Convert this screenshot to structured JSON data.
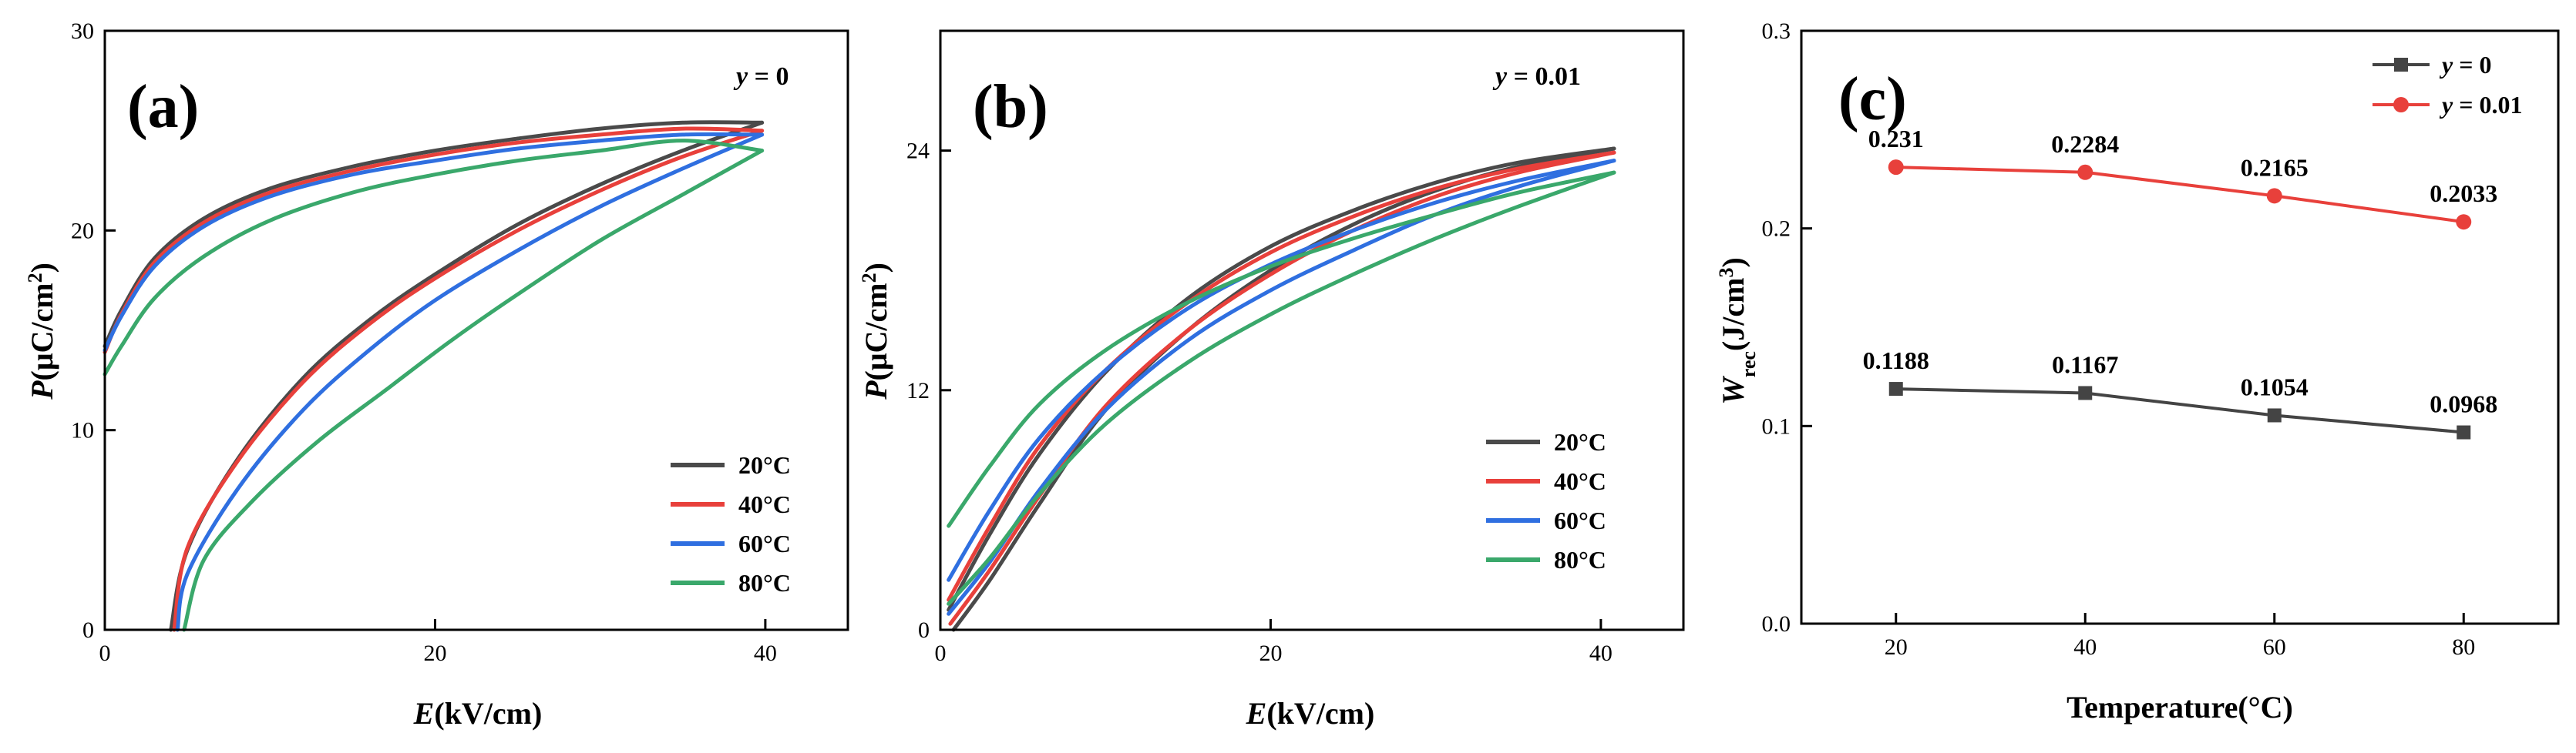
{
  "colors": {
    "20": "#4a4a4a",
    "40": "#e8403b",
    "60": "#2f6fe0",
    "80": "#3aa86b",
    "y0": "#444444",
    "y001": "#e8403b"
  },
  "chart_data": [
    {
      "type": "line",
      "panel": "(a)",
      "annotation_var": "y",
      "annotation_val": " = 0",
      "xlabel_var": "E",
      "xlabel_unit": "(kV/cm)",
      "ylabel_var": "P",
      "ylabel_unit": "(μC/cm",
      "ylabel_sup": "2",
      "ylabel_close": ")",
      "xlim": [
        0,
        45
      ],
      "ylim": [
        0,
        30
      ],
      "xticks": [
        0,
        20,
        40
      ],
      "xtick_labels": [
        "0",
        "20",
        "40"
      ],
      "yticks": [
        0,
        10,
        20,
        30
      ],
      "ytick_labels": [
        "0",
        "10",
        "20",
        "30"
      ],
      "legend": "bottom-right",
      "series": [
        {
          "name": "20°C",
          "color": "#4a4a4a",
          "upper": [
            [
              0,
              14.2
            ],
            [
              1,
              16.0
            ],
            [
              3,
              18.6
            ],
            [
              6,
              20.6
            ],
            [
              10,
              22.1
            ],
            [
              15,
              23.2
            ],
            [
              20,
              24.0
            ],
            [
              25,
              24.6
            ],
            [
              30,
              25.1
            ],
            [
              35,
              25.4
            ],
            [
              39.8,
              25.4
            ]
          ],
          "lower": [
            [
              4.0,
              0
            ],
            [
              5,
              4.0
            ],
            [
              8,
              8.5
            ],
            [
              12,
              12.6
            ],
            [
              16,
              15.5
            ],
            [
              20,
              17.8
            ],
            [
              25,
              20.3
            ],
            [
              30,
              22.3
            ],
            [
              35,
              24.0
            ],
            [
              39.8,
              25.4
            ]
          ]
        },
        {
          "name": "40°C",
          "color": "#e8403b",
          "upper": [
            [
              0,
              13.9
            ],
            [
              1,
              15.8
            ],
            [
              3,
              18.4
            ],
            [
              6,
              20.4
            ],
            [
              10,
              21.9
            ],
            [
              15,
              23.0
            ],
            [
              20,
              23.8
            ],
            [
              25,
              24.4
            ],
            [
              30,
              24.8
            ],
            [
              35,
              25.1
            ],
            [
              39.8,
              25.0
            ]
          ],
          "lower": [
            [
              4.2,
              0
            ],
            [
              5,
              4.1
            ],
            [
              8,
              8.4
            ],
            [
              12,
              12.4
            ],
            [
              16,
              15.3
            ],
            [
              20,
              17.6
            ],
            [
              25,
              20.0
            ],
            [
              30,
              22.0
            ],
            [
              35,
              23.7
            ],
            [
              39.8,
              25.0
            ]
          ]
        },
        {
          "name": "60°C",
          "color": "#2f6fe0",
          "upper": [
            [
              0,
              14.0
            ],
            [
              1,
              15.7
            ],
            [
              3,
              18.2
            ],
            [
              6,
              20.2
            ],
            [
              10,
              21.7
            ],
            [
              15,
              22.8
            ],
            [
              20,
              23.5
            ],
            [
              25,
              24.1
            ],
            [
              30,
              24.5
            ],
            [
              35,
              24.8
            ],
            [
              39.8,
              24.8
            ]
          ],
          "lower": [
            [
              4.4,
              0
            ],
            [
              5,
              2.8
            ],
            [
              8,
              7.0
            ],
            [
              12,
              11.0
            ],
            [
              16,
              14.0
            ],
            [
              20,
              16.5
            ],
            [
              25,
              19.0
            ],
            [
              30,
              21.2
            ],
            [
              35,
              23.1
            ],
            [
              39.8,
              24.8
            ]
          ]
        },
        {
          "name": "80°C",
          "color": "#3aa86b",
          "upper": [
            [
              0,
              12.8
            ],
            [
              1,
              14.2
            ],
            [
              3,
              16.6
            ],
            [
              6,
              18.7
            ],
            [
              10,
              20.5
            ],
            [
              15,
              21.9
            ],
            [
              20,
              22.8
            ],
            [
              25,
              23.5
            ],
            [
              30,
              24.0
            ],
            [
              35,
              24.5
            ],
            [
              39.8,
              24.0
            ]
          ],
          "lower": [
            [
              4.8,
              0
            ],
            [
              6,
              3.5
            ],
            [
              9,
              6.5
            ],
            [
              13,
              9.5
            ],
            [
              17,
              12.0
            ],
            [
              21,
              14.5
            ],
            [
              25,
              16.8
            ],
            [
              30,
              19.5
            ],
            [
              35,
              21.8
            ],
            [
              39.8,
              24.0
            ]
          ]
        }
      ]
    },
    {
      "type": "line",
      "panel": "(b)",
      "annotation_var": "y",
      "annotation_val": " = 0.01",
      "xlabel_var": "E",
      "xlabel_unit": "(kV/cm)",
      "ylabel_var": "P",
      "ylabel_unit": "(μC/cm",
      "ylabel_sup": "2",
      "ylabel_close": ")",
      "xlim": [
        0,
        45
      ],
      "ylim": [
        0,
        30
      ],
      "xticks": [
        0,
        20,
        40
      ],
      "xtick_labels": [
        "0",
        "20",
        "40"
      ],
      "yticks": [
        0,
        12,
        24
      ],
      "ytick_labels": [
        "0",
        "12",
        "24"
      ],
      "legend": "bottom-right",
      "series": [
        {
          "name": "20°C",
          "color": "#4a4a4a",
          "upper": [
            [
              0.5,
              1.0
            ],
            [
              3,
              4.8
            ],
            [
              6,
              8.8
            ],
            [
              10,
              12.9
            ],
            [
              15,
              16.6
            ],
            [
              20,
              19.2
            ],
            [
              25,
              21.0
            ],
            [
              30,
              22.4
            ],
            [
              35,
              23.4
            ],
            [
              40.8,
              24.1
            ]
          ],
          "lower": [
            [
              0.8,
              0
            ],
            [
              3,
              2.5
            ],
            [
              6,
              6.3
            ],
            [
              10,
              11.0
            ],
            [
              15,
              15.0
            ],
            [
              20,
              18.0
            ],
            [
              25,
              20.3
            ],
            [
              30,
              22.0
            ],
            [
              35,
              23.2
            ],
            [
              40.8,
              24.1
            ]
          ]
        },
        {
          "name": "40°C",
          "color": "#e8403b",
          "upper": [
            [
              0.5,
              1.5
            ],
            [
              3,
              5.2
            ],
            [
              6,
              9.2
            ],
            [
              10,
              13.0
            ],
            [
              15,
              16.4
            ],
            [
              20,
              18.9
            ],
            [
              25,
              20.7
            ],
            [
              30,
              22.1
            ],
            [
              35,
              23.1
            ],
            [
              40.8,
              23.9
            ]
          ],
          "lower": [
            [
              0.6,
              0.3
            ],
            [
              3,
              3.0
            ],
            [
              6,
              6.7
            ],
            [
              10,
              11.2
            ],
            [
              15,
              15.0
            ],
            [
              20,
              17.8
            ],
            [
              25,
              20.0
            ],
            [
              30,
              21.7
            ],
            [
              35,
              22.9
            ],
            [
              40.8,
              23.9
            ]
          ]
        },
        {
          "name": "60°C",
          "color": "#2f6fe0",
          "upper": [
            [
              0.5,
              2.5
            ],
            [
              3,
              6.0
            ],
            [
              6,
              9.6
            ],
            [
              10,
              13.0
            ],
            [
              15,
              16.1
            ],
            [
              20,
              18.3
            ],
            [
              25,
              20.0
            ],
            [
              30,
              21.4
            ],
            [
              35,
              22.5
            ],
            [
              40.8,
              23.5
            ]
          ],
          "lower": [
            [
              0.5,
              0.8
            ],
            [
              3,
              3.4
            ],
            [
              6,
              7.0
            ],
            [
              10,
              11.0
            ],
            [
              15,
              14.5
            ],
            [
              20,
              17.0
            ],
            [
              25,
              19.0
            ],
            [
              30,
              20.8
            ],
            [
              35,
              22.2
            ],
            [
              40.8,
              23.5
            ]
          ]
        },
        {
          "name": "80°C",
          "color": "#3aa86b",
          "upper": [
            [
              0.5,
              5.2
            ],
            [
              3,
              8.2
            ],
            [
              6,
              11.3
            ],
            [
              10,
              14.0
            ],
            [
              15,
              16.4
            ],
            [
              20,
              18.2
            ],
            [
              25,
              19.6
            ],
            [
              30,
              20.8
            ],
            [
              35,
              21.9
            ],
            [
              40.8,
              22.9
            ]
          ],
          "lower": [
            [
              0.5,
              1.3
            ],
            [
              3,
              3.6
            ],
            [
              6,
              6.8
            ],
            [
              10,
              10.3
            ],
            [
              15,
              13.4
            ],
            [
              20,
              15.8
            ],
            [
              25,
              17.8
            ],
            [
              30,
              19.6
            ],
            [
              35,
              21.2
            ],
            [
              40.8,
              22.9
            ]
          ]
        }
      ]
    },
    {
      "type": "line",
      "panel": "(c)",
      "xlabel": "Temperature(°C)",
      "ylabel_var": "W",
      "ylabel_sub": "rec",
      "ylabel_unit": "(J/cm",
      "ylabel_sup": "3",
      "ylabel_close": ")",
      "xlim": [
        10,
        90
      ],
      "ylim": [
        0,
        0.3
      ],
      "xticks": [
        20,
        40,
        60,
        80
      ],
      "xtick_labels": [
        "20",
        "40",
        "60",
        "80"
      ],
      "yticks": [
        0,
        0.1,
        0.2,
        0.3
      ],
      "ytick_labels": [
        "0.0",
        "0.1",
        "0.2",
        "0.3"
      ],
      "legend": "top-right",
      "x": [
        20,
        40,
        60,
        80
      ],
      "series": [
        {
          "name_var": "y",
          "name_val": " = 0",
          "color": "#444444",
          "marker": "square",
          "values": [
            0.1188,
            0.1167,
            0.1054,
            0.0968
          ],
          "labels": [
            "0.1188",
            "0.1167",
            "0.1054",
            "0.0968"
          ]
        },
        {
          "name_var": "y",
          "name_val": " = 0.01",
          "color": "#e8403b",
          "marker": "circle",
          "values": [
            0.231,
            0.2284,
            0.2165,
            0.2033
          ],
          "labels": [
            "0.231",
            "0.2284",
            "0.2165",
            "0.2033"
          ]
        }
      ]
    }
  ]
}
